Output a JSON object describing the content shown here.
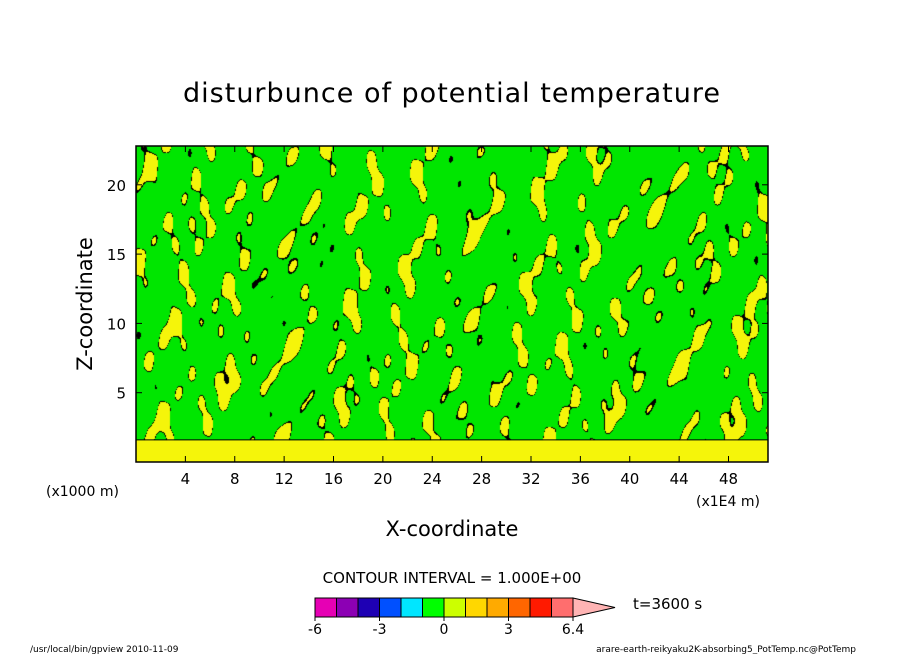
{
  "chart_data": {
    "type": "heatmap",
    "title": "disturbunce of potential temperature",
    "xlabel": "X-coordinate",
    "ylabel": "Z-coordinate",
    "x_unit_left": "(x1000 m)",
    "x_unit_right": "(x1E4 m)",
    "xlim": [
      0,
      51.2
    ],
    "ylim": [
      0,
      22.8
    ],
    "x_ticks": [
      4,
      8,
      12,
      16,
      20,
      24,
      28,
      32,
      36,
      40,
      44,
      48
    ],
    "y_ticks": [
      5,
      10,
      15,
      20
    ],
    "contour_interval_label": "CONTOUR INTERVAL = 1.000E+00",
    "time_label": "t=3600 s",
    "colorbar": {
      "tick_labels": [
        "-6",
        "-3",
        "0",
        "3",
        "6.4"
      ],
      "colors": [
        "#e600b4",
        "#8c00b4",
        "#1e00b4",
        "#0050ff",
        "#00e6ff",
        "#00ff00",
        "#ccff00",
        "#ffd700",
        "#ffaa00",
        "#ff6600",
        "#ff1a00",
        "#ff6e6e",
        "#ffb4b4"
      ]
    },
    "field_colors": {
      "background": "#00e600",
      "positive": "#f5f50a",
      "contour": "#000000"
    }
  },
  "footer": {
    "left": "/usr/local/bin/gpview  2010-11-09",
    "right": "arare-earth-reikyaku2K-absorbing5_PotTemp.nc@PotTemp"
  }
}
